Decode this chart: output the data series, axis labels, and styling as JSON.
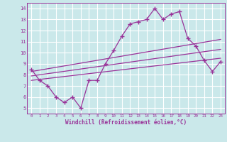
{
  "background_color": "#cae8ea",
  "grid_color": "#ffffff",
  "line_color": "#993399",
  "marker_color": "#993399",
  "xlabel": "Windchill (Refroidissement éolien,°C)",
  "xlim": [
    -0.5,
    23.5
  ],
  "ylim": [
    4.5,
    14.5
  ],
  "xtick_vals": [
    0,
    1,
    2,
    3,
    4,
    5,
    6,
    7,
    8,
    9,
    10,
    11,
    12,
    13,
    14,
    15,
    16,
    17,
    18,
    19,
    20,
    21,
    22,
    23
  ],
  "ytick_vals": [
    5,
    6,
    7,
    8,
    9,
    10,
    11,
    12,
    13,
    14
  ],
  "series1_x": [
    0,
    1,
    2,
    3,
    4,
    5,
    6,
    7,
    8,
    9,
    10,
    11,
    12,
    13,
    14,
    15,
    16,
    17,
    18,
    19,
    20,
    21,
    22,
    23
  ],
  "series1_y": [
    8.5,
    7.5,
    7.0,
    6.0,
    5.5,
    6.0,
    5.0,
    7.5,
    7.5,
    9.0,
    10.2,
    11.5,
    12.6,
    12.8,
    13.0,
    14.0,
    13.0,
    13.5,
    13.7,
    11.3,
    10.6,
    9.3,
    8.3,
    9.2
  ],
  "line1_x": [
    0,
    23
  ],
  "line1_y": [
    8.3,
    11.2
  ],
  "line2_x": [
    0,
    23
  ],
  "line2_y": [
    7.9,
    10.3
  ],
  "line3_x": [
    0,
    23
  ],
  "line3_y": [
    7.5,
    9.5
  ]
}
